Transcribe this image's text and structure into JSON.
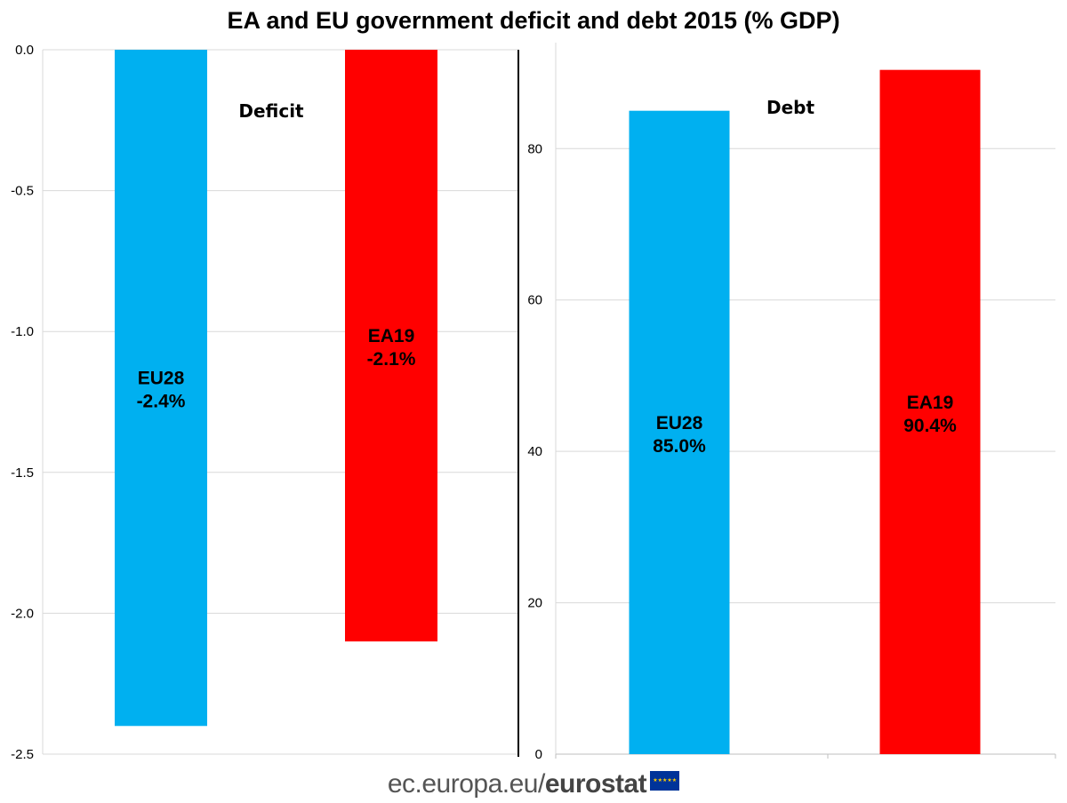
{
  "title": "EA and EU government deficit and debt 2015 (% GDP)",
  "footer": {
    "site": "ec.europa.eu/",
    "brand": "eurostat"
  },
  "colors": {
    "eu28": "#00b0f0",
    "ea19": "#ff0000",
    "grid": "#d9d9d9",
    "axis": "#000000"
  },
  "chart_data": [
    {
      "type": "bar",
      "title": "Deficit",
      "categories": [
        "EU28",
        "EA19"
      ],
      "values": [
        -2.4,
        -2.1
      ],
      "bar_labels": [
        [
          "EU28",
          "-2.4%"
        ],
        [
          "EA19",
          "-2.1%"
        ]
      ],
      "ylim": [
        -2.5,
        0.0
      ],
      "yticks": [
        "0.0",
        "-0.5",
        "-1.0",
        "-1.5",
        "-2.0",
        "-2.5"
      ],
      "ytick_values": [
        0.0,
        -0.5,
        -1.0,
        -1.5,
        -2.0,
        -2.5
      ],
      "xlabel": "",
      "ylabel": "",
      "grid": true
    },
    {
      "type": "bar",
      "title": "Debt",
      "categories": [
        "EU28",
        "EA19"
      ],
      "values": [
        85.0,
        90.4
      ],
      "bar_labels": [
        [
          "EU28",
          "85.0%"
        ],
        [
          "EA19",
          "90.4%"
        ]
      ],
      "ylim": [
        0,
        94
      ],
      "yticks": [
        "0",
        "20",
        "40",
        "60",
        "80"
      ],
      "ytick_values": [
        0,
        20,
        40,
        60,
        80
      ],
      "xlabel": "",
      "ylabel": "",
      "grid": true
    }
  ]
}
